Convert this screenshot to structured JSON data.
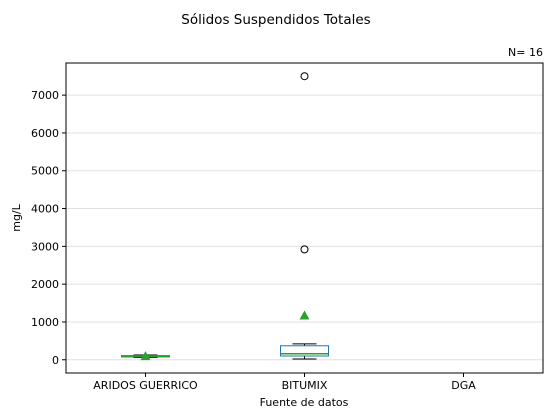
{
  "chart_data": {
    "type": "box",
    "title": "Sólidos Suspendidos Totales",
    "annotation": "N= 16",
    "xlabel": "Fuente de datos",
    "ylabel": "mg/L",
    "categories": [
      "ARIDOS GUERRICO",
      "BITUMIX",
      "DGA"
    ],
    "ylim": [
      -350,
      7850
    ],
    "yticks": [
      0,
      1000,
      2000,
      3000,
      4000,
      5000,
      6000,
      7000
    ],
    "grid": "horizontal",
    "boxes": [
      {
        "category": "ARIDOS GUERRICO",
        "whislo": 60,
        "q1": 75,
        "median": 90,
        "q3": 110,
        "whishi": 125,
        "mean": 95,
        "fliers": []
      },
      {
        "category": "BITUMIX",
        "whislo": 20,
        "q1": 100,
        "median": 160,
        "q3": 370,
        "whishi": 420,
        "mean": 1170,
        "fliers": [
          2920,
          7500
        ]
      }
    ],
    "colors": {
      "box": "#1f77b4",
      "median": "#2ca02c",
      "mean": "#2ca02c",
      "whisker": "#000000",
      "grid": "#e0e0e0"
    }
  }
}
